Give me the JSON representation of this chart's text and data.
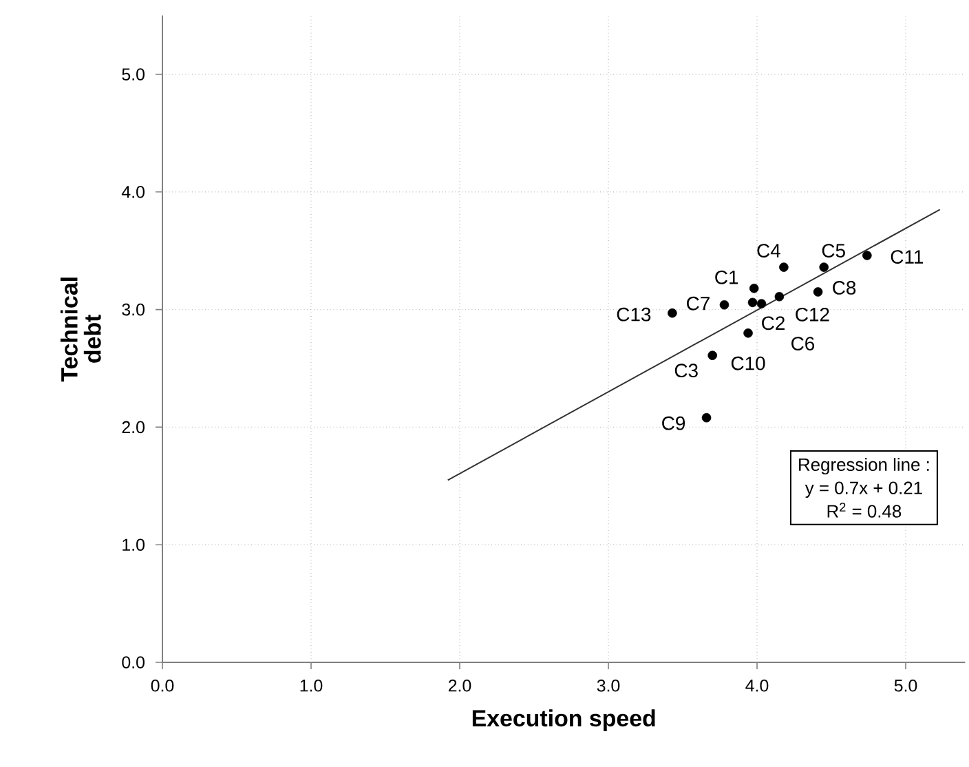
{
  "chart_data": {
    "type": "scatter",
    "xlabel": "Execution speed",
    "ylabel": "Technical debt",
    "xlim": [
      0,
      5.4
    ],
    "ylim": [
      0,
      5.5
    ],
    "xticks": [
      {
        "value": 0,
        "label": "0.0"
      },
      {
        "value": 1,
        "label": "1.0"
      },
      {
        "value": 2,
        "label": "2.0"
      },
      {
        "value": 3,
        "label": "3.0"
      },
      {
        "value": 4,
        "label": "4.0"
      },
      {
        "value": 5,
        "label": "5.0"
      }
    ],
    "yticks": [
      {
        "value": 0,
        "label": "0.0"
      },
      {
        "value": 1,
        "label": "1.0"
      },
      {
        "value": 2,
        "label": "2.0"
      },
      {
        "value": 3,
        "label": "3.0"
      },
      {
        "value": 4,
        "label": "4.0"
      },
      {
        "value": 5,
        "label": "5.0"
      }
    ],
    "grid": true,
    "marker": "circle",
    "series": [
      {
        "type": "scatter",
        "color": "#000000",
        "x": [
          3.98,
          3.97,
          3.7,
          4.18,
          4.45,
          4.03,
          3.78,
          4.41,
          3.66,
          3.94,
          4.74,
          4.15,
          3.43
        ],
        "values": [
          3.18,
          3.06,
          2.61,
          3.36,
          3.36,
          3.05,
          3.04,
          3.15,
          2.08,
          2.8,
          3.46,
          3.11,
          2.97
        ]
      },
      {
        "type": "line",
        "color": "#333333",
        "marker": "none",
        "line_style": "solid",
        "x": [
          1.92,
          5.23
        ],
        "values": [
          1.55,
          3.85
        ]
      }
    ],
    "annotations": [
      {
        "text": "C1",
        "x": 3.98,
        "y": 3.18
      },
      {
        "text": "C2",
        "x": 3.97,
        "y": 3.06
      },
      {
        "text": "C3",
        "x": 3.7,
        "y": 2.61
      },
      {
        "text": "C4",
        "x": 4.18,
        "y": 3.36
      },
      {
        "text": "C5",
        "x": 4.45,
        "y": 3.36
      },
      {
        "text": "C6",
        "x": 4.03,
        "y": 3.05
      },
      {
        "text": "C7",
        "x": 3.78,
        "y": 3.04
      },
      {
        "text": "C8",
        "x": 4.41,
        "y": 3.15
      },
      {
        "text": "C9",
        "x": 3.66,
        "y": 2.08
      },
      {
        "text": "C10",
        "x": 3.94,
        "y": 2.8
      },
      {
        "text": "C11",
        "x": 4.74,
        "y": 3.46
      },
      {
        "text": "C12",
        "x": 4.15,
        "y": 3.11
      },
      {
        "text": "C13",
        "x": 3.43,
        "y": 2.97
      },
      "Regression line :",
      "y = 0.7x + 0.21",
      "R$^{2}$ = 0.48"
    ]
  }
}
